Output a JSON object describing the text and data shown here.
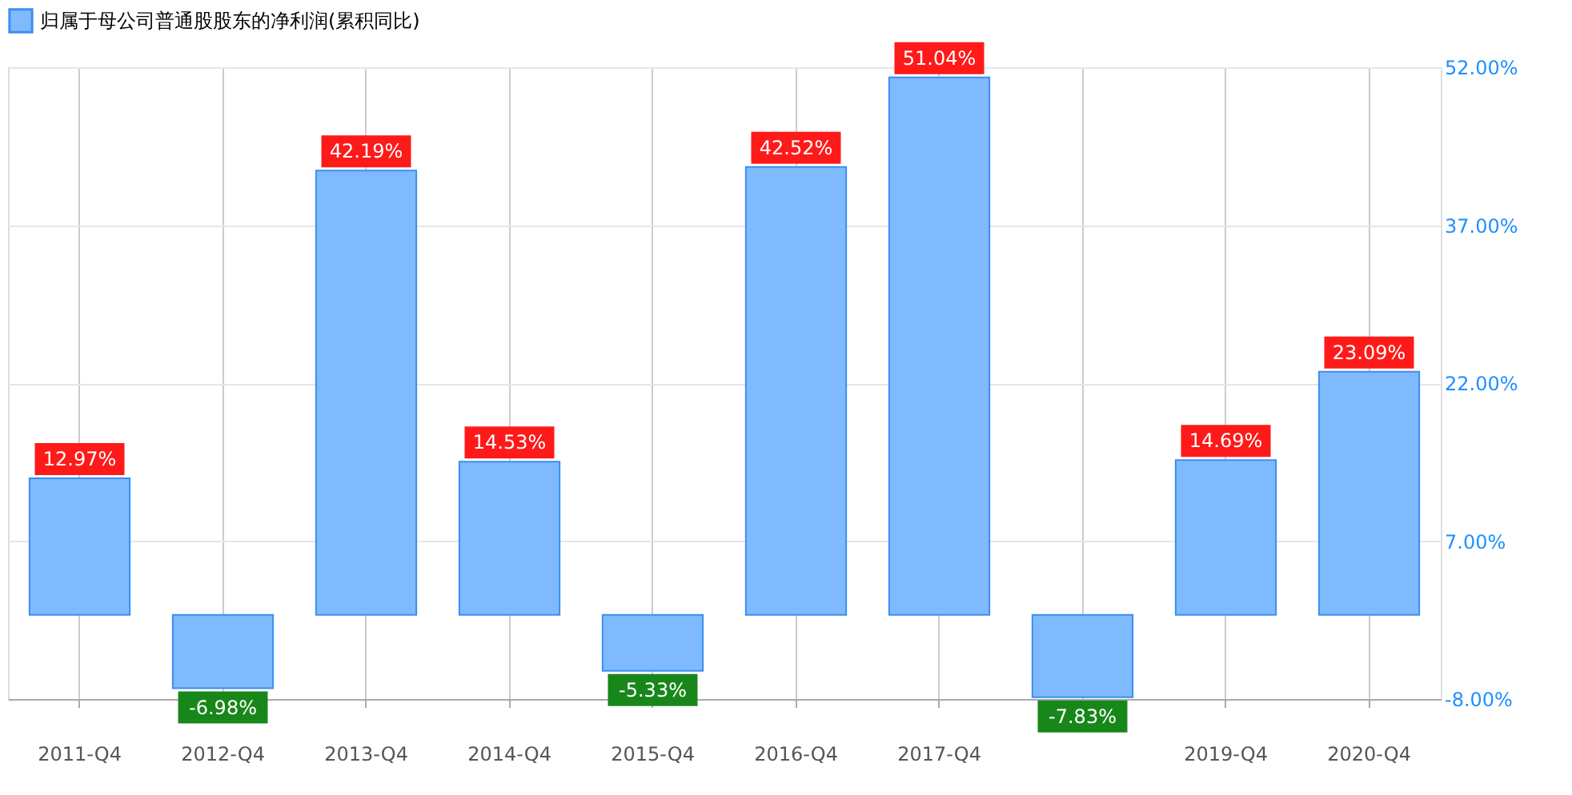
{
  "chart_data": {
    "type": "bar",
    "categories": [
      "2011-Q4",
      "2012-Q4",
      "2013-Q4",
      "2014-Q4",
      "2015-Q4",
      "2016-Q4",
      "2017-Q4",
      null,
      "2019-Q4",
      "2020-Q4"
    ],
    "series": [
      {
        "name": "归属于母公司普通股股东的净利润(累积同比)",
        "color": "#7fbaff",
        "values": [
          12.97,
          -6.98,
          42.19,
          14.53,
          -5.33,
          42.52,
          51.04,
          -7.83,
          14.69,
          23.09
        ],
        "value_labels": [
          "12.97%",
          "-6.98%",
          "42.19%",
          "14.53%",
          "-5.33%",
          "42.52%",
          "51.04%",
          "-7.83%",
          "14.69%",
          "23.09%"
        ]
      }
    ],
    "ylim": [
      -8,
      52
    ],
    "yticks": [
      {
        "value": -8,
        "label": "-8.00%"
      },
      {
        "value": 7,
        "label": "7.00%"
      },
      {
        "value": 22,
        "label": "22.00%"
      },
      {
        "value": 37,
        "label": "37.00%"
      },
      {
        "value": 52,
        "label": "52.00%"
      }
    ],
    "grid": true,
    "legend": "top"
  }
}
